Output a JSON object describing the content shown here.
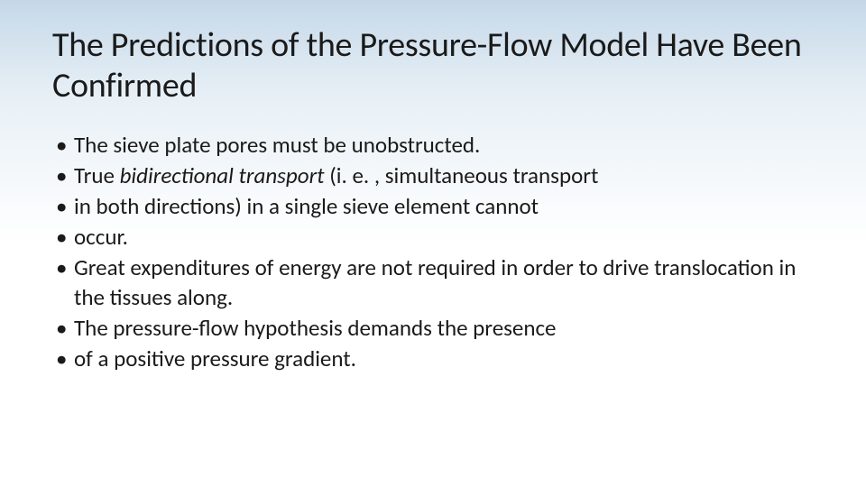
{
  "slide": {
    "background_gradient": [
      "#c5d8e8",
      "#e8f0f6",
      "#ffffff"
    ],
    "title_text": "The Predictions of the Pressure-Flow Model Have Been Confirmed",
    "title_fontsize": 38,
    "title_color": "#1a1a1a",
    "body_fontsize": 25,
    "body_color": "#1a1a1a",
    "bullet_char": "•",
    "bullets": [
      {
        "plain": "The sieve plate pores must be unobstructed."
      },
      {
        "prefix": "True ",
        "italic": "bidirectional transport ",
        "suffix": "(i. e. , simultaneous transport"
      },
      {
        "plain": "in both directions) in a single sieve element cannot"
      },
      {
        "plain": "occur."
      },
      {
        "plain": "Great expenditures of energy are not required in order to drive translocation in the tissues along."
      },
      {
        "plain": "The pressure-flow hypothesis demands the presence"
      },
      {
        "plain": "of a positive pressure gradient."
      }
    ]
  }
}
